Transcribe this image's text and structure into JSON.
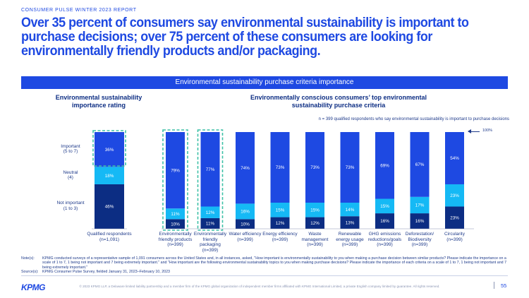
{
  "header": {
    "report_label": "CONSUMER PULSE WINTER 2023 REPORT",
    "headline": "Over 35 percent of consumers say environmental sustainability is important to purchase decisions; over 75 percent of these consumers are looking for environmentally friendly products and/or packaging."
  },
  "banner": {
    "title": "Environmental sustainability purchase criteria importance"
  },
  "left_panel": {
    "title": "Environmental sustainability importance rating"
  },
  "right_panel": {
    "title": "Environmentally conscious consumers’ top environmental sustainability purchase criteria",
    "note": "n = 399 qualified respondents who say environmental sustainability is important to purchase decisions",
    "hundred_label": "100%"
  },
  "colors": {
    "dark": "#0c2d83",
    "mid": "#1e49e2",
    "light": "#15b9f5",
    "highlight": "#3ec1a7",
    "text": "#1e3a8a"
  },
  "chart_data": [
    {
      "type": "bar",
      "stacked": true,
      "title": "Environmental sustainability importance rating",
      "categories": [
        "Qualified respondents (n=1,091)"
      ],
      "series": [
        {
          "name": "Not important (1 to 3)",
          "values": [
            46
          ],
          "labels": [
            "46%"
          ]
        },
        {
          "name": "Neutral (4)",
          "values": [
            18
          ],
          "labels": [
            "18%"
          ]
        },
        {
          "name": "Important (5 to 7)",
          "values": [
            36
          ],
          "labels": [
            "36%"
          ]
        }
      ],
      "ylim": [
        0,
        100
      ]
    },
    {
      "type": "bar",
      "stacked": true,
      "title": "Environmentally conscious consumers’ top environmental sustainability purchase criteria",
      "categories": [
        "Environmentally friendly products (n=399)",
        "Environmentally friendly packaging (n=399)",
        "Water efficiency (n=399)",
        "Energy efficiency (n=399)",
        "Waste management (n=399)",
        "Renewable energy usage (n=399)",
        "GHG emissions reductions/goals (n=399)",
        "Deforestation/ Biodiversity (n=399)",
        "Circularity (n=399)"
      ],
      "highlighted": [
        0,
        1
      ],
      "series": [
        {
          "values": [
            10,
            11,
            10,
            12,
            12,
            13,
            16,
            16,
            23
          ],
          "labels": [
            "10%",
            "11%",
            "10%",
            "12%",
            "12%",
            "13%",
            "16%",
            "16%",
            "23%"
          ]
        },
        {
          "values": [
            11,
            12,
            16,
            15,
            15,
            14,
            15,
            17,
            23
          ],
          "labels": [
            "11%",
            "12%",
            "16%",
            "15%",
            "15%",
            "14%",
            "15%",
            "17%",
            "23%"
          ]
        },
        {
          "values": [
            79,
            77,
            74,
            73,
            73,
            73,
            69,
            67,
            54
          ],
          "labels": [
            "79%",
            "77%",
            "74%",
            "73%",
            "73%",
            "73%",
            "69%",
            "67%",
            "54%"
          ]
        }
      ],
      "ylim": [
        0,
        100
      ]
    }
  ],
  "left_categories": [
    {
      "lines": [
        "Qualified respondents",
        "(n=1,091)"
      ]
    }
  ],
  "rating_labels": [
    {
      "lines": [
        "Important",
        "(5 to 7)"
      ]
    },
    {
      "lines": [
        "Neutral",
        "(4)"
      ]
    },
    {
      "lines": [
        "Not important",
        "(1 to 3)"
      ]
    }
  ],
  "right_categories": [
    {
      "lines": [
        "Environmentally",
        "friendly products",
        "(n=399)"
      ]
    },
    {
      "lines": [
        "Environmentally",
        "friendly",
        "packaging",
        "(n=399)"
      ]
    },
    {
      "lines": [
        "Water efficiency",
        "(n=399)"
      ]
    },
    {
      "lines": [
        "Energy efficiency",
        "(n=399)"
      ]
    },
    {
      "lines": [
        "Waste",
        "management",
        "(n=399)"
      ]
    },
    {
      "lines": [
        "Renewable",
        "energy usage",
        "(n=399)"
      ]
    },
    {
      "lines": [
        "GHG emissions",
        "reductions/goals",
        "(n=399)"
      ]
    },
    {
      "lines": [
        "Deforestation/",
        "Biodiversity",
        "(n=399)"
      ]
    },
    {
      "lines": [
        "Circularity",
        "(n=399)"
      ]
    }
  ],
  "notes": {
    "note_key": "Note(s):",
    "note_text": "KPMG conducted surveys of a representative sample of 1,091 consumers across the United States and, in all instances, asked, \"How important is environmentally sustainability to you when making a purchase decision between similar products? Please indicate the importance on a scale of 1 to 7, 1 being not important and 7 being extremely important.\" and \"How important are the following environmental sustainability topics to you when making purchase decisions? Please indicate the importance of each criteria on a scale of 1 to 7, 1 being not important and 7 being extremely important.\"",
    "source_key": "Source(s):",
    "source_text": "KPMG Consumer Pulse Survey, fielded January 31, 2023–February 10, 2023"
  },
  "footer": {
    "logo": "KPMG",
    "copyright": "© 2023 KPMG LLP, a Delaware limited liability partnership and a member firm of the KPMG global organization of independent member firms affiliated with KPMG International Limited, a private English company limited by guarantee. All rights reserved.",
    "page_number": "55"
  }
}
